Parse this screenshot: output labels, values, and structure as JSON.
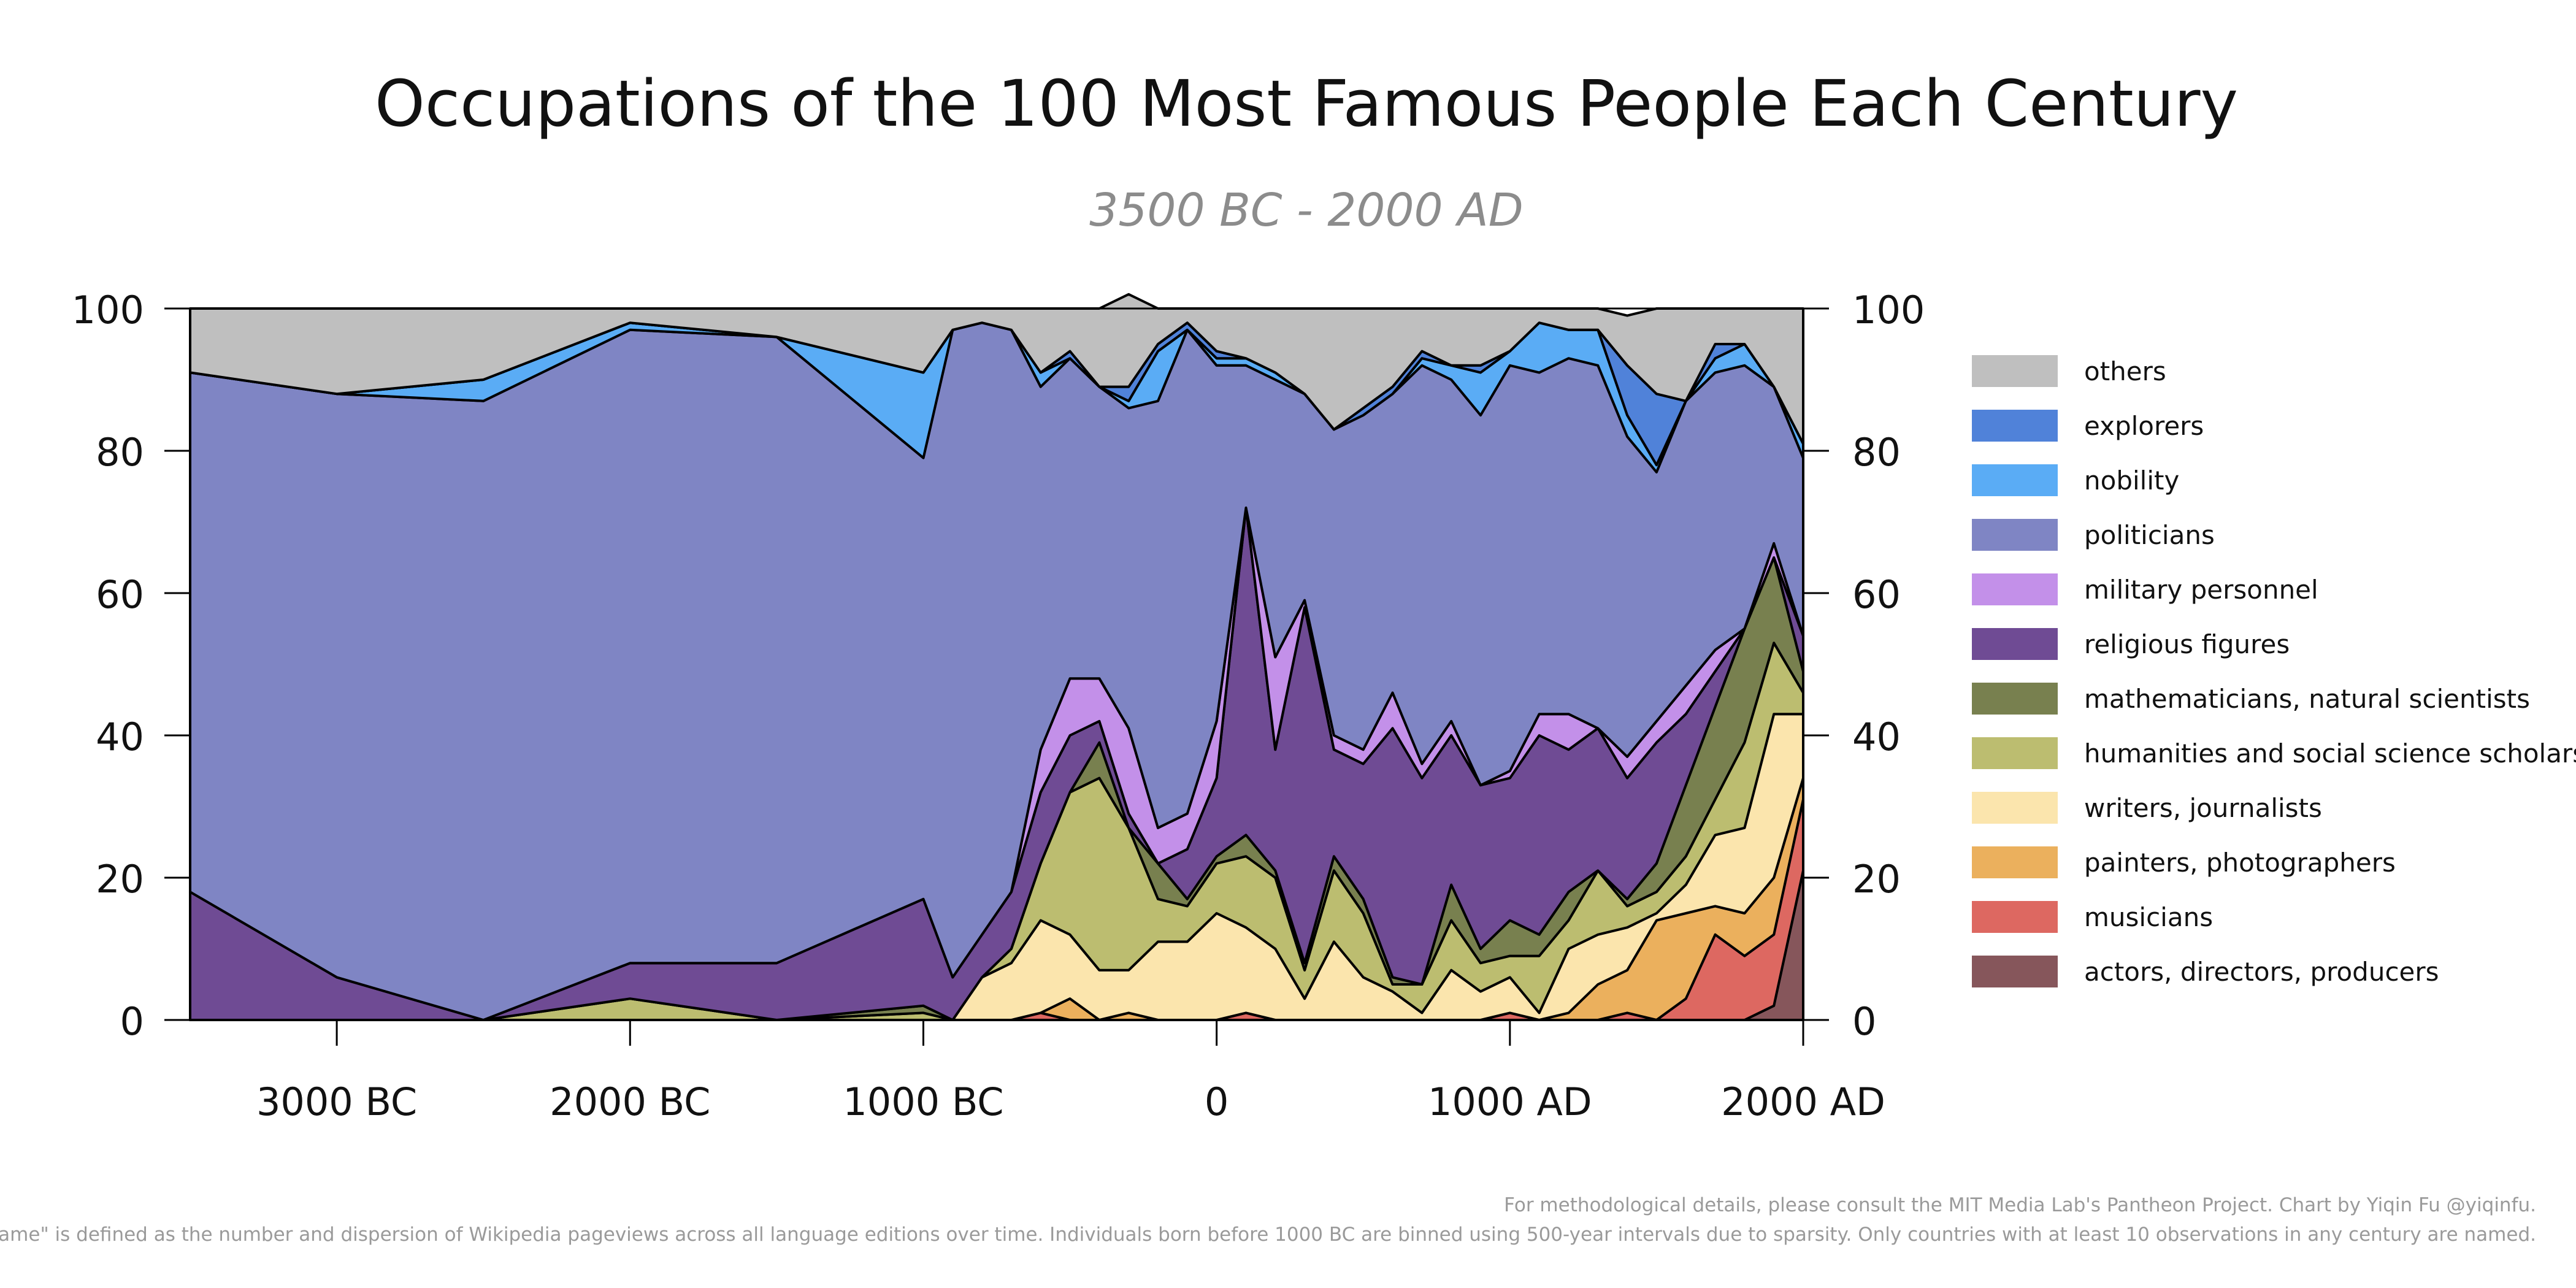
{
  "chart_data": {
    "type": "area",
    "title": "Occupations of the 100 Most Famous People Each Century",
    "subtitle": "3500 BC - 2000 AD",
    "xlabel": "",
    "ylabel": "",
    "xlim": [
      -3500,
      2000
    ],
    "ylim": [
      0,
      100
    ],
    "y_ticks": [
      0,
      20,
      40,
      60,
      80,
      100
    ],
    "x_ticks": [
      {
        "value": -3000,
        "label": "3000 BC"
      },
      {
        "value": -2000,
        "label": "2000 BC"
      },
      {
        "value": -1000,
        "label": "1000 BC"
      },
      {
        "value": 0,
        "label": "0"
      },
      {
        "value": 1000,
        "label": "1000 AD"
      },
      {
        "value": 2000,
        "label": "2000 AD"
      }
    ],
    "stacked": true,
    "grid": false,
    "legend_position": "right",
    "x": [
      -3500,
      -3000,
      -2500,
      -2000,
      -1500,
      -1000,
      -900,
      -800,
      -700,
      -600,
      -500,
      -400,
      -300,
      -200,
      -100,
      0,
      100,
      200,
      300,
      400,
      500,
      600,
      700,
      800,
      900,
      1000,
      1100,
      1200,
      1300,
      1400,
      1500,
      1600,
      1700,
      1800,
      1900,
      2000
    ],
    "series": [
      {
        "name": "actors, directors, producers",
        "color": "#86565b",
        "values": [
          0,
          0,
          0,
          0,
          0,
          0,
          0,
          0,
          0,
          0,
          0,
          0,
          0,
          0,
          0,
          0,
          0,
          0,
          0,
          0,
          0,
          0,
          0,
          0,
          0,
          0,
          0,
          0,
          0,
          0,
          0,
          0,
          0,
          0,
          2,
          21
        ]
      },
      {
        "name": "musicians",
        "color": "#dd6861",
        "values": [
          0,
          0,
          0,
          0,
          0,
          0,
          0,
          0,
          0,
          1,
          0,
          0,
          0,
          0,
          0,
          0,
          1,
          0,
          0,
          0,
          0,
          0,
          0,
          0,
          0,
          1,
          0,
          0,
          0,
          1,
          0,
          3,
          12,
          9,
          10,
          10
        ]
      },
      {
        "name": "painters, photographers",
        "color": "#ebb05d",
        "values": [
          0,
          0,
          0,
          0,
          0,
          0,
          0,
          0,
          0,
          0,
          3,
          0,
          1,
          0,
          0,
          0,
          0,
          0,
          0,
          0,
          0,
          0,
          0,
          0,
          0,
          0,
          0,
          1,
          5,
          6,
          14,
          12,
          4,
          6,
          8,
          3
        ]
      },
      {
        "name": "writers, journalists",
        "color": "#fbe5ad",
        "values": [
          0,
          0,
          0,
          0,
          0,
          0,
          0,
          6,
          8,
          13,
          9,
          7,
          6,
          11,
          11,
          15,
          12,
          10,
          3,
          11,
          6,
          4,
          1,
          7,
          4,
          5,
          1,
          9,
          7,
          6,
          1,
          4,
          10,
          12,
          23,
          9
        ]
      },
      {
        "name": "humanities and social science scholars",
        "color": "#bcbd70",
        "values": [
          0,
          0,
          0,
          3,
          0,
          1,
          0,
          0,
          2,
          8,
          20,
          27,
          20,
          6,
          5,
          7,
          10,
          10,
          4,
          10,
          9,
          1,
          4,
          7,
          4,
          3,
          8,
          4,
          9,
          3,
          3,
          4,
          5,
          12,
          10,
          3
        ]
      },
      {
        "name": "mathematicians, natural scientists",
        "color": "#78804f",
        "values": [
          0,
          0,
          0,
          0,
          0,
          1,
          0,
          0,
          0,
          0,
          0,
          5,
          0,
          5,
          1,
          1,
          3,
          1,
          1,
          2,
          2,
          1,
          0,
          5,
          2,
          5,
          3,
          4,
          0,
          1,
          4,
          10,
          13,
          16,
          12,
          3
        ]
      },
      {
        "name": "religious figures",
        "color": "#6f4b94",
        "values": [
          18,
          6,
          0,
          5,
          8,
          15,
          6,
          6,
          8,
          10,
          8,
          3,
          2,
          0,
          7,
          11,
          46,
          17,
          50,
          15,
          19,
          35,
          29,
          21,
          23,
          20,
          28,
          20,
          20,
          17,
          17,
          10,
          5,
          0,
          0,
          5
        ]
      },
      {
        "name": "military personnel",
        "color": "#c390e9",
        "values": [
          0,
          0,
          0,
          0,
          0,
          0,
          0,
          0,
          0,
          6,
          8,
          6,
          12,
          5,
          5,
          8,
          0,
          13,
          1,
          2,
          2,
          5,
          2,
          2,
          0,
          1,
          3,
          5,
          0,
          3,
          3,
          4,
          3,
          0,
          2,
          0
        ]
      },
      {
        "name": "politicians",
        "color": "#7f85c4",
        "values": [
          73,
          82,
          87,
          89,
          88,
          62,
          91,
          86,
          79,
          51,
          45,
          41,
          45,
          60,
          68,
          50,
          20,
          39,
          29,
          43,
          47,
          42,
          56,
          48,
          52,
          57,
          48,
          50,
          51,
          45,
          35,
          40,
          39,
          37,
          22,
          25
        ]
      },
      {
        "name": "nobility",
        "color": "#5aacf5",
        "values": [
          0,
          0,
          3,
          1,
          0,
          12,
          0,
          0,
          0,
          2,
          0,
          0,
          1,
          7,
          0,
          1,
          1,
          1,
          0,
          0,
          0,
          0,
          1,
          2,
          6,
          2,
          7,
          4,
          5,
          3,
          1,
          0,
          2,
          3,
          0,
          2
        ]
      },
      {
        "name": "explorers",
        "color": "#5082d9",
        "values": [
          0,
          0,
          0,
          0,
          0,
          0,
          0,
          0,
          0,
          0,
          1,
          0,
          2,
          1,
          1,
          1,
          0,
          0,
          0,
          0,
          1,
          1,
          1,
          0,
          1,
          0,
          0,
          0,
          0,
          7,
          10,
          0,
          2,
          0,
          0,
          0
        ]
      },
      {
        "name": "others",
        "color": "#bfbfbf",
        "values": [
          9,
          12,
          10,
          2,
          4,
          9,
          3,
          2,
          3,
          9,
          6,
          11,
          13,
          5,
          2,
          6,
          7,
          9,
          12,
          17,
          14,
          11,
          6,
          8,
          8,
          6,
          2,
          3,
          3,
          7,
          12,
          13,
          5,
          5,
          11,
          19
        ]
      }
    ]
  },
  "footnotes": [
    "For methodological details, please consult the MIT Media Lab's Pantheon Project. Chart by Yiqin Fu @yiqinfu.",
    "\"Fame\" is defined as the number and dispersion of Wikipedia pageviews across all language editions over time. Individuals born before 1000 BC are binned using 500-year intervals due to sparsity. Only countries with at least 10 observations in any century are named."
  ]
}
